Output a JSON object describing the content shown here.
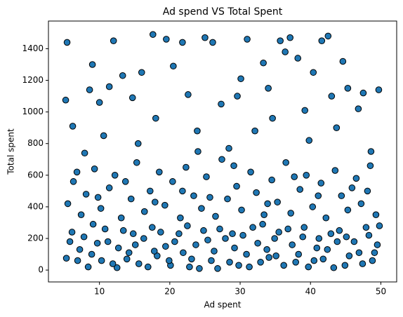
{
  "chart_data": {
    "type": "scatter",
    "title": "Ad spend VS Total Spent",
    "x_label": "Ad spent",
    "y_label": "Total spent",
    "color": "#1f77b4",
    "edge_color": "#000000",
    "xlim": [
      2.75,
      52.25
    ],
    "xticks": [
      10,
      20,
      30,
      40,
      50
    ],
    "ylim": [
      -75,
      1575
    ],
    "yticks": [
      0,
      200,
      400,
      600,
      800,
      1000,
      1200,
      1400
    ],
    "x": [
      5.3,
      6.1,
      7.2,
      8.4,
      9.1,
      10.3,
      11.2,
      12.5,
      13.4,
      14.2,
      15.6,
      16.3,
      17.5,
      18.2,
      19.4,
      20.1,
      21.3,
      22.5,
      23.1,
      24.2,
      25.4,
      26.3,
      27.1,
      28.5,
      29.2,
      30.4,
      31.3,
      32.5,
      33.2,
      34.1,
      35.5,
      36.2,
      37.4,
      38.3,
      39.1,
      40.5,
      41.2,
      42.4,
      43.3,
      44.1,
      45.5,
      46.2,
      47.4,
      48.3,
      49.1,
      49.8,
      5.8,
      6.9,
      7.8,
      8.9,
      9.7,
      10.8,
      11.9,
      12.7,
      13.9,
      14.8,
      15.1,
      16.9,
      17.8,
      18.7,
      19.9,
      20.7,
      21.9,
      22.8,
      23.7,
      24.8,
      25.9,
      26.8,
      27.9,
      28.9,
      29.8,
      30.9,
      31.8,
      32.9,
      33.8,
      34.9,
      35.1,
      36.8,
      37.9,
      38.9,
      39.7,
      40.9,
      41.8,
      42.9,
      43.8,
      44.9,
      45.1,
      46.9,
      47.9,
      48.8,
      49.5,
      5.5,
      6.3,
      7.4,
      8.1,
      9.3,
      10.2,
      11.4,
      12.2,
      13.1,
      14.5,
      15.3,
      16.4,
      17.2,
      18.5,
      19.3,
      20.4,
      21.5,
      22.3,
      23.4,
      24.5,
      25.2,
      26.5,
      27.4,
      28.2,
      29.5,
      30.2,
      31.5,
      32.3,
      33.4,
      34.5,
      35.3,
      36.5,
      37.2,
      38.5,
      39.4,
      40.3,
      41.5,
      42.2,
      43.5,
      44.4,
      45.3,
      46.5,
      47.2,
      48.5,
      49.3,
      6.8,
      9.8,
      13.7,
      17.9,
      21.8,
      25.7,
      29.1,
      33.9,
      37.7,
      41.1,
      45.9,
      48.1,
      5.4,
      5.2,
      6.2,
      7.9,
      8.6,
      9.0,
      10.6,
      11.4,
      12.0,
      13.3,
      14.7,
      16.0,
      17.6,
      18.0,
      19.5,
      20.5,
      21.8,
      22.6,
      23.9,
      25.0,
      26.1,
      27.3,
      28.4,
      29.6,
      30.1,
      31.0,
      32.1,
      33.3,
      34.6,
      35.7,
      36.4,
      37.1,
      38.2,
      39.2,
      40.4,
      41.6,
      42.5,
      43.7,
      44.6,
      45.3,
      46.8,
      47.5,
      48.6,
      49.7,
      10.0,
      15.5,
      24.0,
      34.0,
      43.0,
      39.8
    ],
    "values": [
      75,
      240,
      130,
      20,
      290,
      60,
      180,
      15,
      250,
      110,
      40,
      200,
      270,
      90,
      150,
      30,
      230,
      280,
      70,
      10,
      190,
      120,
      260,
      50,
      140,
      220,
      20,
      170,
      290,
      80,
      240,
      30,
      160,
      100,
      270,
      60,
      200,
      130,
      15,
      250,
      90,
      180,
      40,
      220,
      110,
      280,
      180,
      60,
      210,
      100,
      170,
      260,
      40,
      140,
      70,
      230,
      160,
      20,
      120,
      240,
      60,
      180,
      110,
      20,
      160,
      250,
      60,
      10,
      200,
      230,
      30,
      100,
      270,
      50,
      130,
      200,
      90,
      260,
      50,
      210,
      20,
      140,
      70,
      230,
      180,
      30,
      210,
      110,
      270,
      60,
      160,
      420,
      560,
      350,
      480,
      640,
      390,
      520,
      600,
      330,
      450,
      680,
      370,
      500,
      620,
      410,
      560,
      330,
      650,
      470,
      390,
      590,
      340,
      700,
      450,
      530,
      380,
      620,
      490,
      350,
      570,
      430,
      680,
      360,
      510,
      600,
      400,
      550,
      330,
      630,
      470,
      380,
      580,
      420,
      660,
      350,
      620,
      460,
      560,
      430,
      500,
      460,
      660,
      420,
      590,
      470,
      520,
      500,
      1440,
      1075,
      910,
      740,
      1140,
      1300,
      850,
      1160,
      1450,
      1230,
      1090,
      1250,
      1490,
      960,
      1460,
      1290,
      1440,
      1110,
      880,
      1470,
      1440,
      1050,
      770,
      1100,
      1210,
      1460,
      880,
      1310,
      960,
      1450,
      1380,
      1470,
      1340,
      1010,
      1250,
      1450,
      1480,
      900,
      1320,
      1150,
      1020,
      1120,
      750,
      1140,
      1060,
      800,
      750,
      1150,
      1100,
      820
    ]
  }
}
